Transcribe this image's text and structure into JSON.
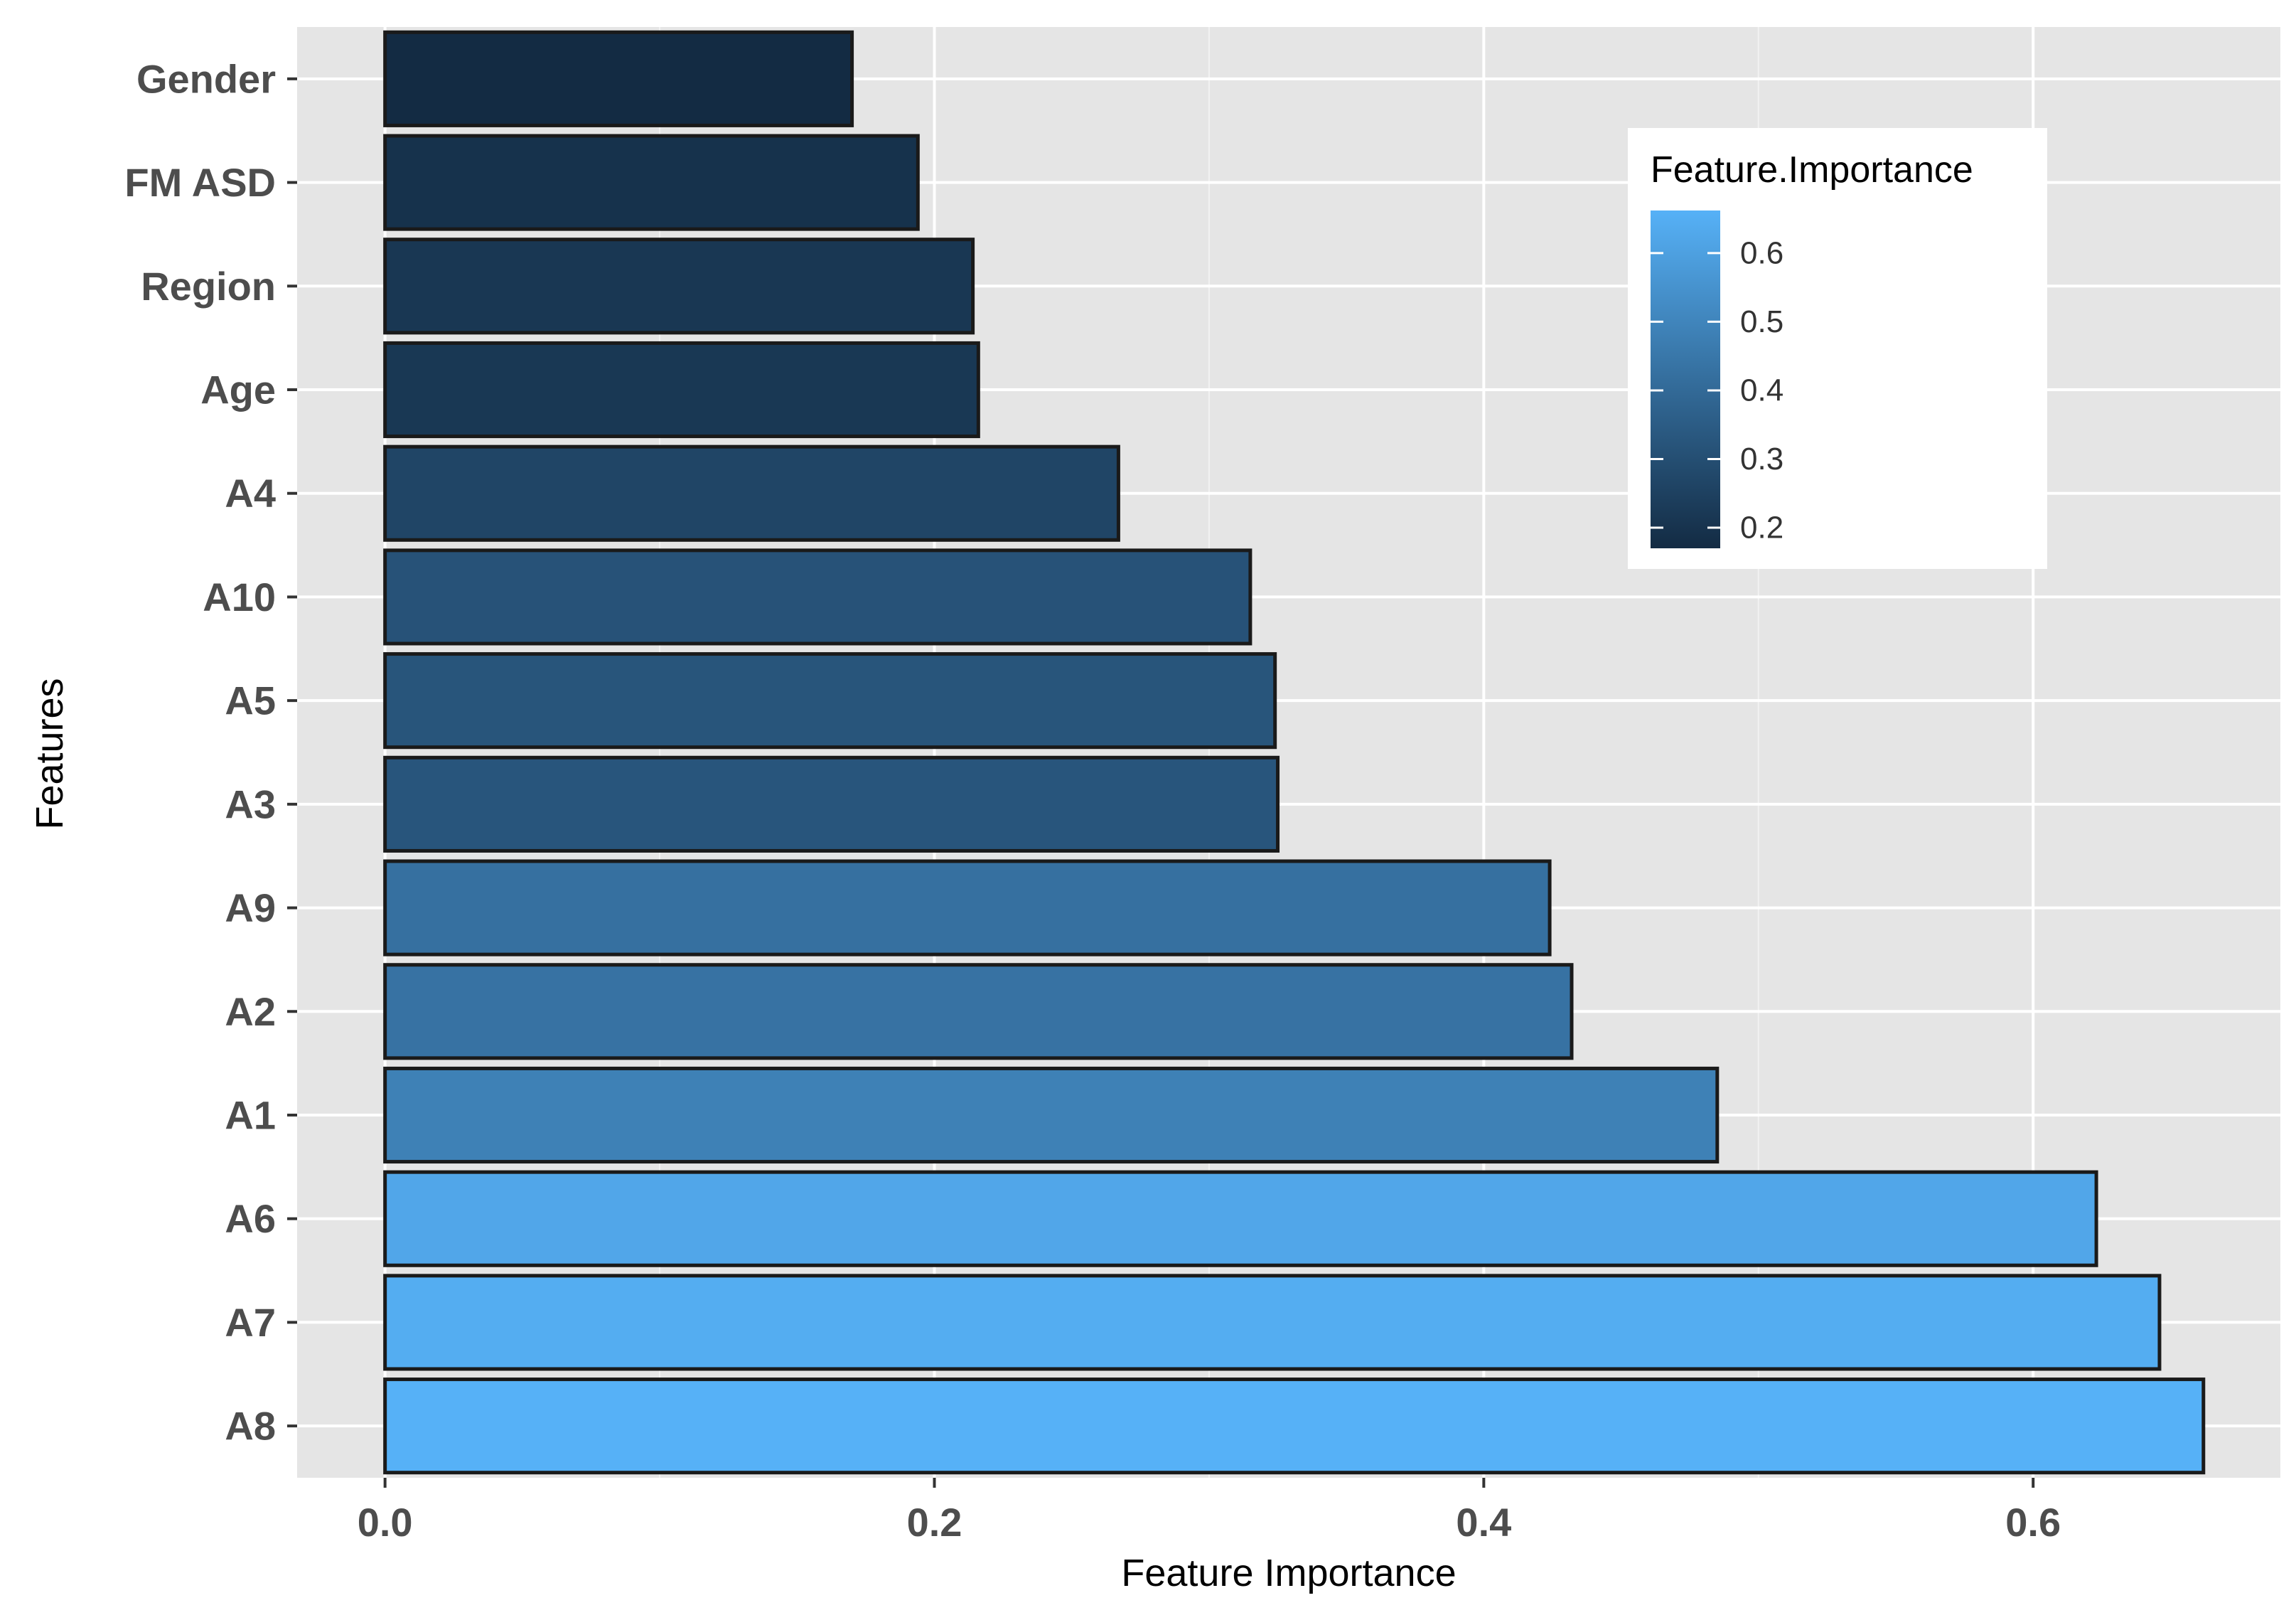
{
  "chart_data": {
    "type": "bar",
    "orientation": "horizontal",
    "title": "",
    "xlabel": "Feature Importance",
    "ylabel": "Features",
    "categories": [
      "Gender",
      "FM ASD",
      "Region",
      "Age",
      "A4",
      "A10",
      "A5",
      "A3",
      "A9",
      "A2",
      "A1",
      "A6",
      "A7",
      "A8"
    ],
    "values": [
      0.17,
      0.194,
      0.214,
      0.216,
      0.267,
      0.315,
      0.324,
      0.325,
      0.424,
      0.432,
      0.485,
      0.623,
      0.646,
      0.662
    ],
    "xlim": [
      -0.032,
      0.69
    ],
    "xticks": [
      0.0,
      0.2,
      0.4,
      0.6
    ],
    "xtick_labels": [
      "0.0",
      "0.2",
      "0.4",
      "0.6"
    ],
    "grid": true,
    "color_scale": {
      "low_color": "#132b43",
      "high_color": "#56b1f7",
      "min": 0.17,
      "max": 0.662
    },
    "legend": {
      "title": "Feature.Importance",
      "placement": "top-right",
      "breaks": [
        0.2,
        0.3,
        0.4,
        0.5,
        0.6
      ],
      "labels": [
        "0.2",
        "0.3",
        "0.4",
        "0.5",
        "0.6"
      ]
    }
  },
  "colors": {
    "panel_background": "#e5e5e5",
    "grid_major": "#ffffff",
    "bar_outline": "#1a1a1a"
  }
}
